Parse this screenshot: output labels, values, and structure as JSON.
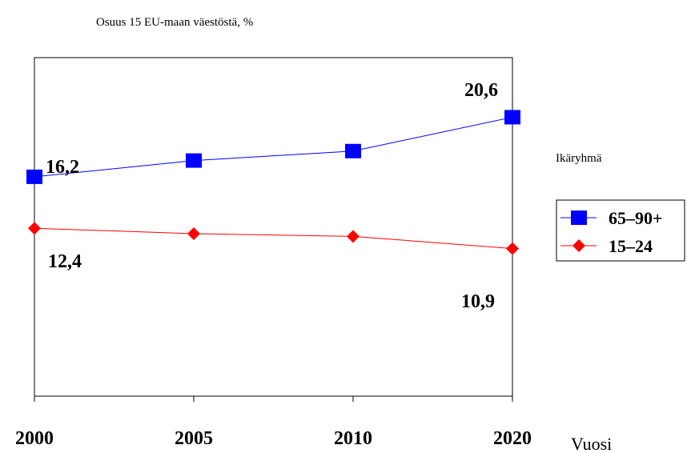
{
  "chart_data": {
    "type": "line",
    "subtitle": "Osuus 15 EU-maan väestöstä, %",
    "categories": [
      "2000",
      "2005",
      "2010",
      "2020"
    ],
    "xlabel": "Vuosi",
    "ylabel": "",
    "ylim": [
      0,
      25
    ],
    "grid": false,
    "legend": {
      "title": "Ikäryhmä",
      "placement": "right"
    },
    "series": [
      {
        "name": "65–90+",
        "values": [
          16.2,
          17.4,
          18.1,
          20.6
        ],
        "color": "#0000ff",
        "marker": "square",
        "data_labels": {
          "0": "16,2",
          "3": "20,6"
        }
      },
      {
        "name": "15–24",
        "values": [
          12.4,
          12.0,
          11.8,
          10.9
        ],
        "color": "#ff0000",
        "marker": "diamond",
        "data_labels": {
          "0": "12,4",
          "3": "10,9"
        }
      }
    ]
  }
}
